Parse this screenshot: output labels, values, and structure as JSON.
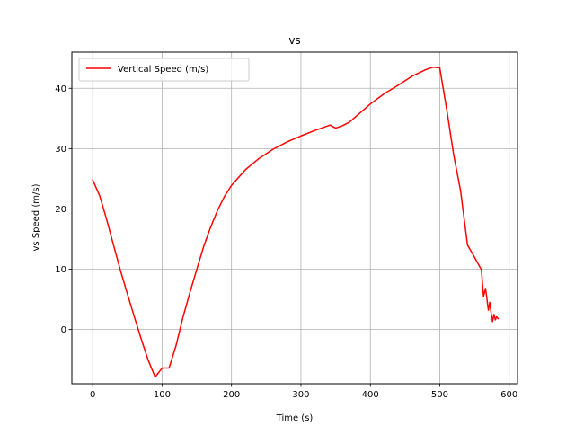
{
  "chart_data": {
    "type": "line",
    "title": "vs",
    "xlabel": "Time (s)",
    "ylabel": "vs Speed (m/s)",
    "xlim": [
      -30,
      612
    ],
    "ylim": [
      -9,
      46
    ],
    "grid": true,
    "legend_position": "upper-left",
    "xticks": [
      0,
      100,
      200,
      300,
      400,
      500,
      600
    ],
    "yticks": [
      0,
      10,
      20,
      30,
      40
    ],
    "xtick_labels": [
      "0",
      "100",
      "200",
      "300",
      "400",
      "500",
      "600"
    ],
    "ytick_labels": [
      "0",
      "10",
      "20",
      "30",
      "40"
    ],
    "series": [
      {
        "name": "Vertical Speed (m/s)",
        "color": "#ff0000",
        "x": [
          0,
          10,
          20,
          30,
          40,
          50,
          60,
          70,
          80,
          90,
          100,
          110,
          120,
          130,
          140,
          150,
          160,
          170,
          180,
          190,
          200,
          220,
          240,
          260,
          280,
          300,
          320,
          342,
          350,
          360,
          370,
          380,
          400,
          420,
          440,
          460,
          480,
          490,
          500,
          510,
          520,
          530,
          540,
          550,
          560,
          563,
          566,
          568,
          570,
          572,
          574,
          576,
          578,
          580,
          582,
          584
        ],
        "values": [
          24.8,
          22.2,
          18.3,
          14.0,
          9.8,
          5.9,
          2.1,
          -1.6,
          -5.1,
          -7.9,
          -6.4,
          -6.4,
          -2.7,
          2.0,
          6.1,
          10.0,
          13.8,
          17.0,
          19.8,
          22.1,
          23.9,
          26.5,
          28.4,
          29.9,
          31.1,
          32.1,
          33.0,
          33.9,
          33.4,
          33.8,
          34.4,
          35.4,
          37.4,
          39.1,
          40.5,
          42.0,
          43.1,
          43.5,
          43.4,
          36.5,
          29.0,
          23.0,
          14.0,
          12.0,
          9.9,
          5.5,
          6.8,
          5.0,
          3.2,
          4.5,
          2.7,
          1.3,
          2.5,
          1.6,
          2.1,
          1.8
        ]
      }
    ]
  }
}
